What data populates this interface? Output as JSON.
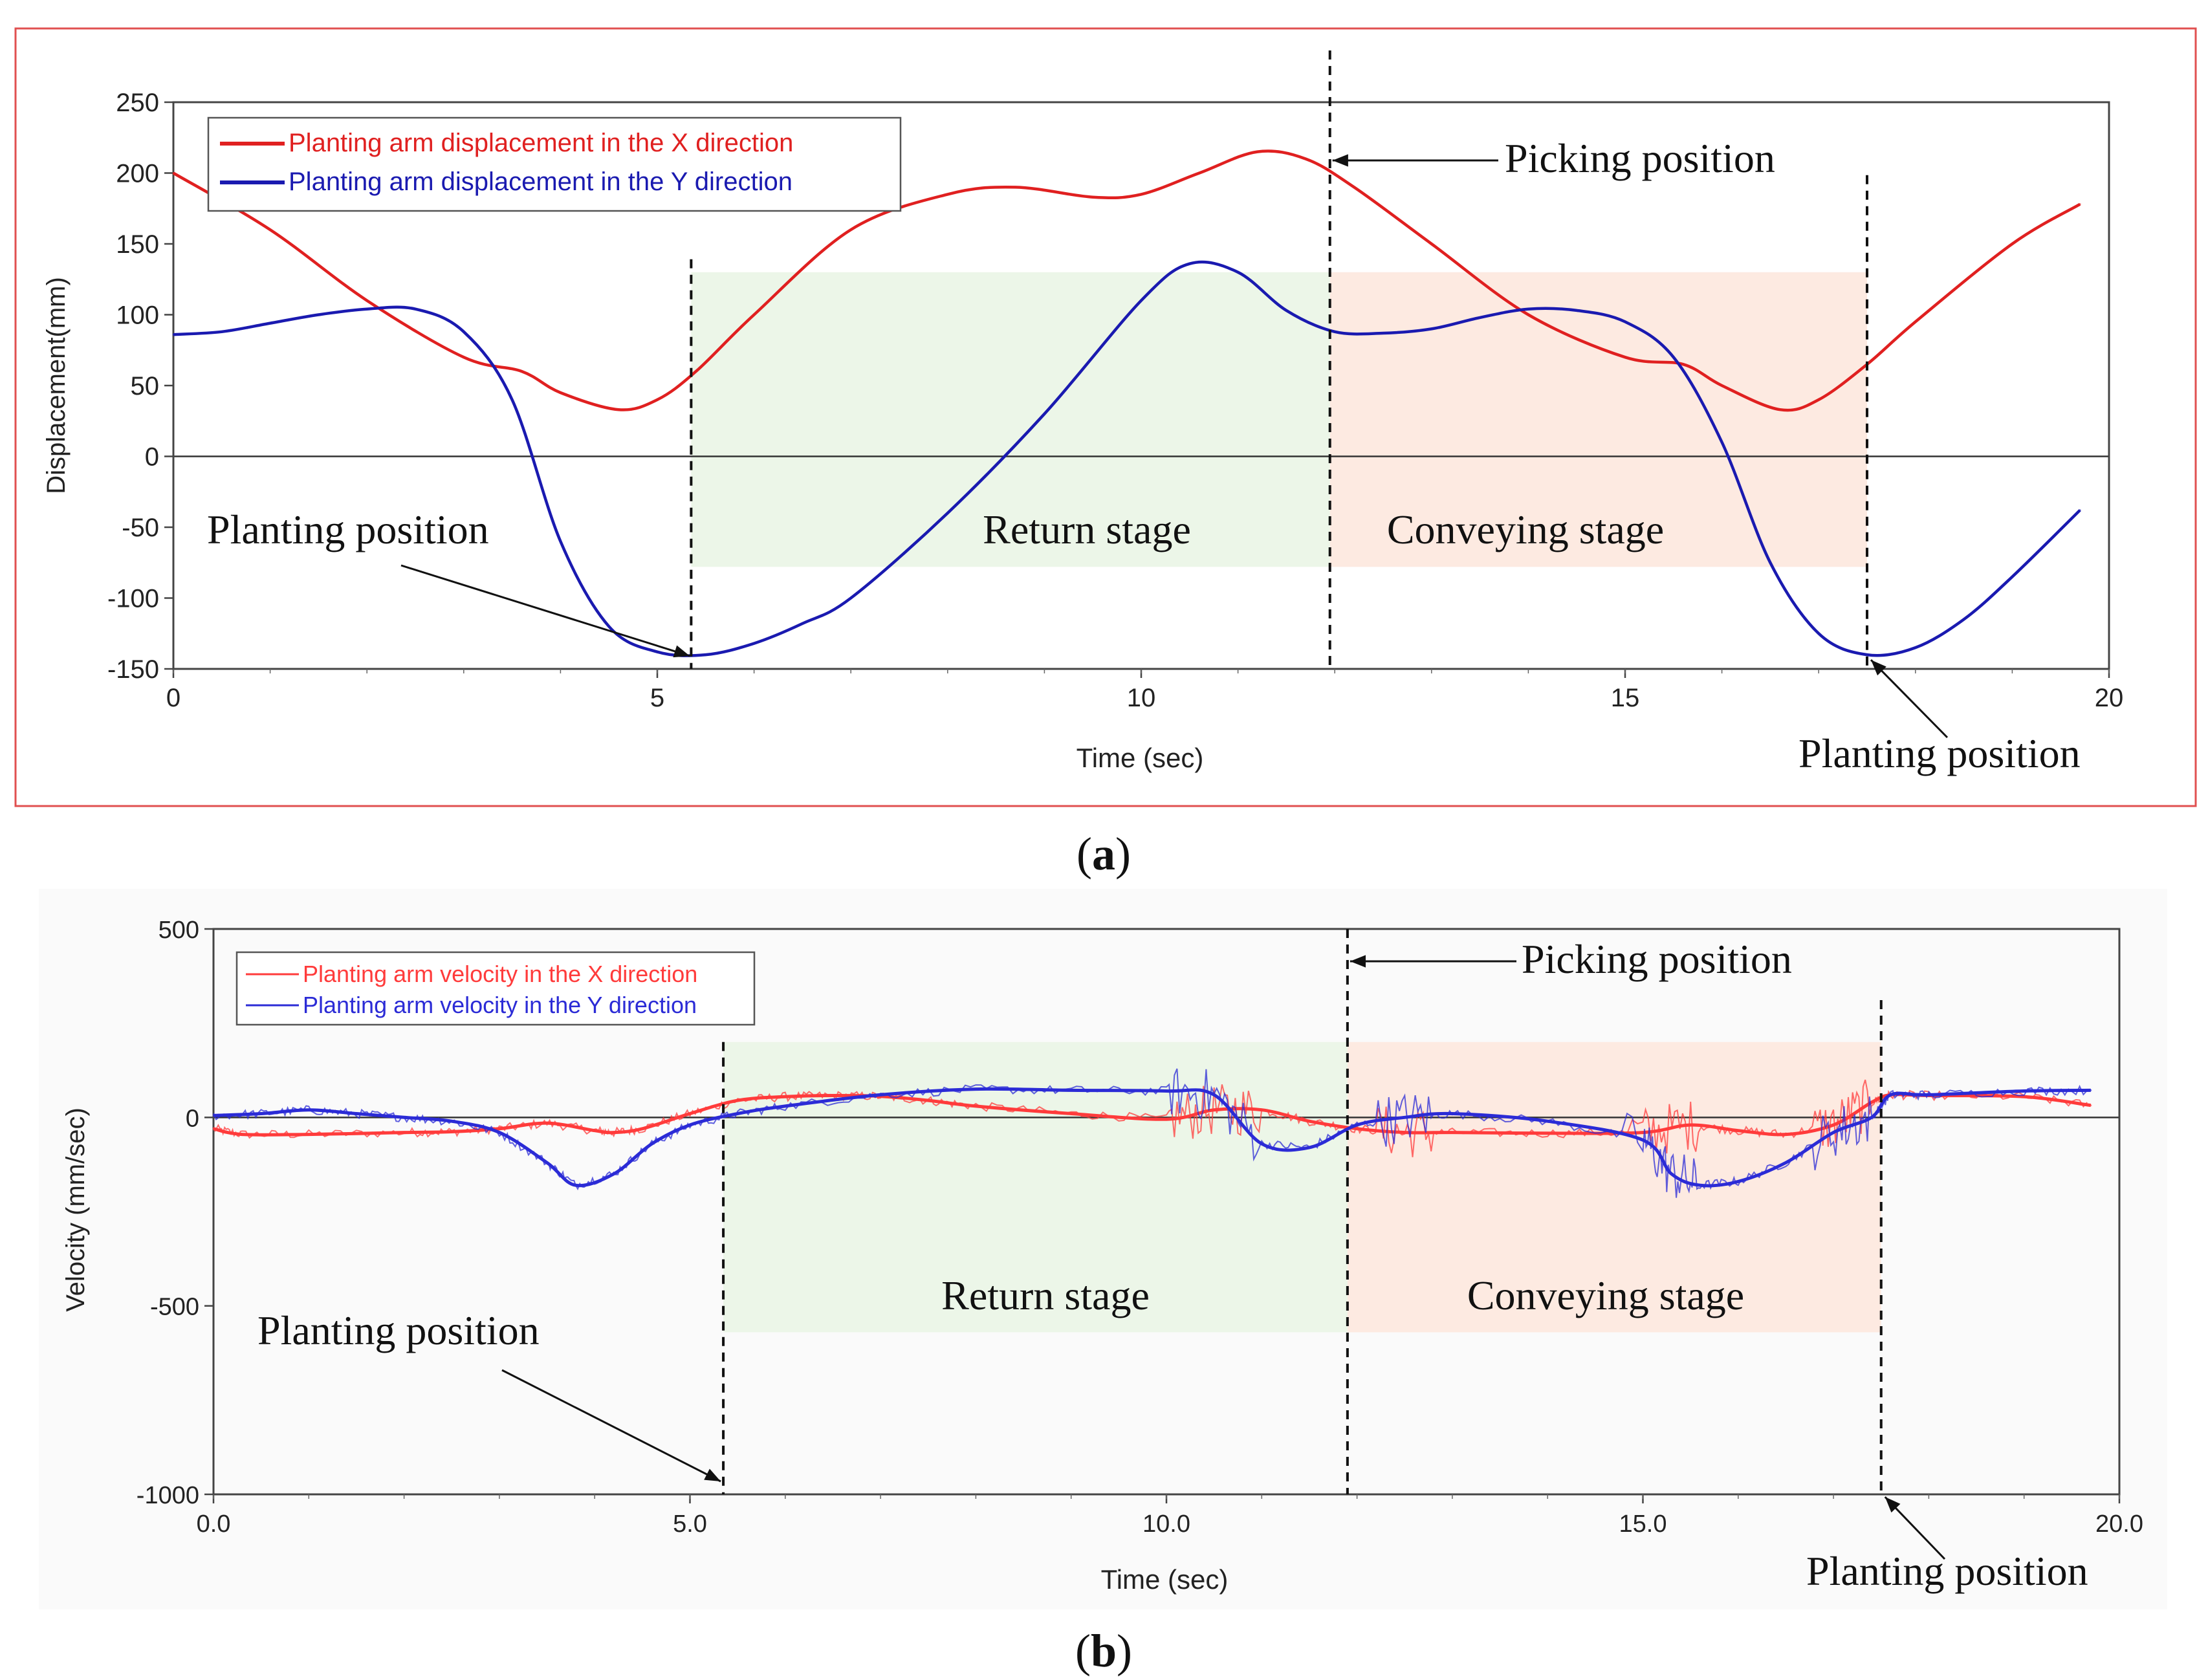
{
  "colors": {
    "x_series": "#e02020",
    "y_series": "#1a1ab0",
    "x_series_b": "#ff3b3b",
    "y_series_b": "#2b2bd6",
    "return_band": "#e9f5e4",
    "conveying_band": "#fde6dc",
    "frame_a": "#e05050"
  },
  "chart_data": [
    {
      "type": "line",
      "panel_label": "a",
      "xlabel": "Time (sec)",
      "ylabel": "Displacement(mm)",
      "xlim": [
        0,
        20
      ],
      "ylim": [
        -150,
        250
      ],
      "x_ticks": [
        "0",
        "5",
        "10",
        "15",
        "20"
      ],
      "y_ticks": [
        "250",
        "200",
        "150",
        "100",
        "50",
        "0",
        "-50",
        "-100",
        "-150"
      ],
      "legend": [
        "Planting arm displacement in the X direction",
        "Planting arm displacement in the Y direction"
      ],
      "series": [
        {
          "name": "Planting arm displacement in the X direction",
          "x": [
            0,
            1,
            2,
            3,
            3.6,
            4,
            4.6,
            5,
            5.4,
            6,
            7,
            8,
            8.7,
            9.5,
            10,
            10.6,
            11.2,
            11.7,
            12.2,
            13,
            14,
            15,
            15.6,
            16,
            16.6,
            17,
            17.5,
            18,
            19,
            19.7
          ],
          "values": [
            200,
            160,
            110,
            70,
            60,
            45,
            33,
            40,
            60,
            100,
            160,
            185,
            190,
            183,
            185,
            200,
            215,
            210,
            190,
            150,
            100,
            70,
            65,
            50,
            33,
            40,
            65,
            95,
            150,
            178
          ]
        },
        {
          "name": "Planting arm displacement in the Y direction",
          "x": [
            0,
            0.5,
            1,
            1.5,
            2,
            2.5,
            3,
            3.5,
            4,
            4.5,
            5,
            5.5,
            6,
            6.5,
            7,
            8,
            9,
            10,
            10.5,
            11,
            11.5,
            12,
            12.5,
            13,
            13.5,
            14,
            14.5,
            15,
            15.5,
            16,
            16.5,
            17,
            17.5,
            18,
            18.5,
            19,
            19.7
          ],
          "values": [
            86,
            88,
            94,
            100,
            104,
            104,
            88,
            40,
            -60,
            -120,
            -138,
            -140,
            -132,
            -118,
            -100,
            -40,
            30,
            110,
            136,
            130,
            103,
            88,
            87,
            90,
            98,
            104,
            103,
            95,
            70,
            10,
            -75,
            -125,
            -140,
            -135,
            -115,
            -85,
            -38
          ]
        }
      ],
      "annotations": {
        "picking": "Picking position",
        "planting_left": "Planting position",
        "planting_right": "Planting position",
        "return_stage": "Return stage",
        "conveying_stage": "Conveying stage"
      },
      "markers": {
        "planting_1": 5.35,
        "picking": 11.95,
        "planting_2": 17.5,
        "band_top": 130,
        "band_bottom": -78
      }
    },
    {
      "type": "line",
      "panel_label": "b",
      "xlabel": "Time (sec)",
      "ylabel": "Velocity (mm/sec)",
      "xlim": [
        0,
        20
      ],
      "ylim": [
        -1000,
        500
      ],
      "x_ticks": [
        "0.0",
        "5.0",
        "10.0",
        "15.0",
        "20.0"
      ],
      "y_ticks": [
        "500",
        "0",
        "-500",
        "-1000"
      ],
      "legend": [
        "Planting arm velocity in the X direction",
        "Planting arm velocity in the Y direction"
      ],
      "series": [
        {
          "name": "Planting arm velocity in the X direction",
          "x": [
            0,
            0.3,
            1,
            2,
            2.5,
            3,
            3.5,
            4,
            4.2,
            4.5,
            5,
            5.5,
            6,
            6.5,
            7,
            7.5,
            8,
            9,
            10,
            10.5,
            11,
            11.5,
            12,
            12.5,
            13,
            14,
            15,
            15.5,
            16,
            16.5,
            17,
            17.4,
            17.6,
            18,
            19,
            19.7
          ],
          "values": [
            -30,
            -45,
            -45,
            -40,
            -38,
            -30,
            -15,
            -35,
            -40,
            -30,
            10,
            45,
            55,
            58,
            56,
            45,
            30,
            10,
            -5,
            20,
            20,
            -10,
            -30,
            -40,
            -40,
            -42,
            -40,
            -20,
            -35,
            -45,
            -20,
            40,
            60,
            58,
            55,
            32
          ]
        },
        {
          "name": "Planting arm velocity in the Y direction",
          "x": [
            0,
            0.5,
            1,
            1.5,
            2,
            2.5,
            3,
            3.5,
            3.8,
            4.2,
            4.6,
            5,
            5.5,
            6,
            7,
            8,
            9,
            10,
            10.5,
            11,
            11.5,
            12,
            12.5,
            13,
            14,
            15,
            15.3,
            15.6,
            16,
            16.5,
            17,
            17.4,
            17.6,
            18,
            19,
            19.7
          ],
          "values": [
            5,
            10,
            20,
            10,
            0,
            -10,
            -40,
            -120,
            -180,
            -150,
            -70,
            -20,
            10,
            30,
            60,
            75,
            72,
            70,
            60,
            -70,
            -80,
            -20,
            0,
            10,
            -10,
            -60,
            -150,
            -180,
            -170,
            -120,
            -40,
            0,
            60,
            60,
            70,
            72
          ]
        }
      ],
      "annotations": {
        "picking": "Picking position",
        "planting_left": "Planting position",
        "planting_right": "Planting position",
        "return_stage": "Return stage",
        "conveying_stage": "Conveying stage"
      },
      "markers": {
        "planting_1": 5.35,
        "picking": 11.9,
        "planting_2": 17.5,
        "band_top": 200,
        "band_bottom": -570
      }
    }
  ]
}
